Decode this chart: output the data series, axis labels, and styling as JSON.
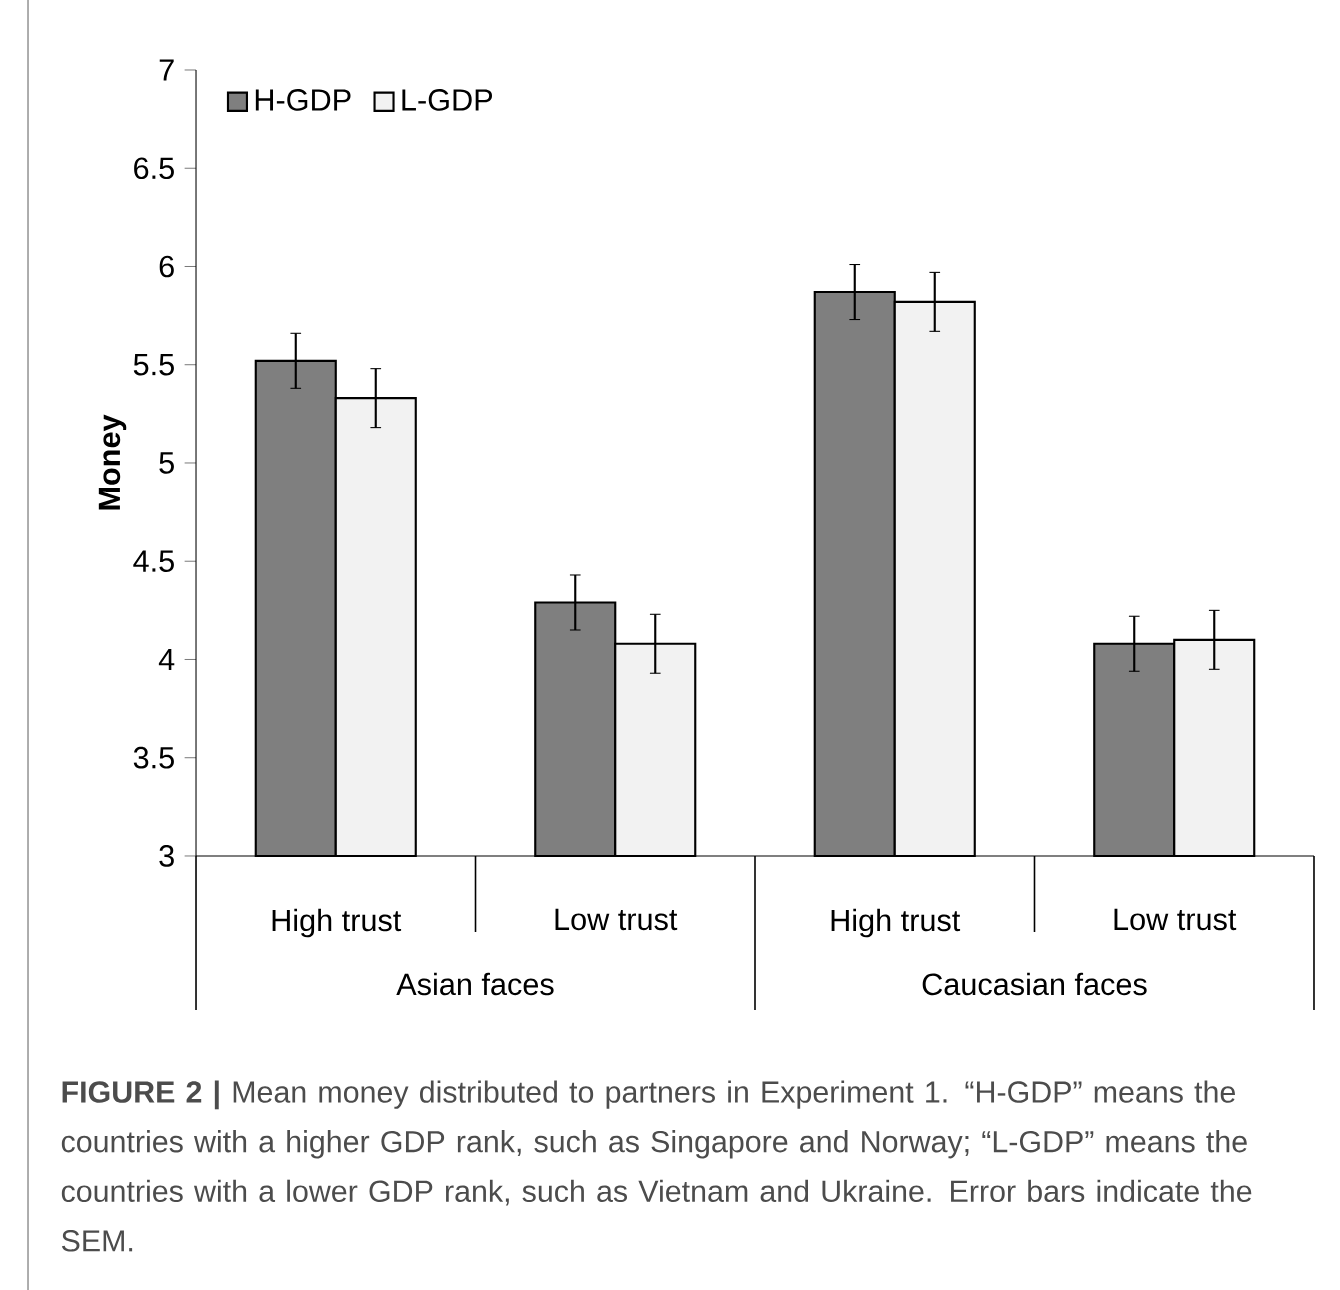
{
  "chart_data": {
    "type": "bar",
    "ylabel": "Money",
    "categories": [
      "High trust",
      "Low trust",
      "High trust",
      "Low trust"
    ],
    "series": [
      {
        "name": "H-GDP",
        "color": "#7f7f7f",
        "values": [
          5.52,
          4.29,
          5.87,
          4.08
        ],
        "errors": [
          0.14,
          0.14,
          0.14,
          0.14
        ]
      },
      {
        "name": "L-GDP",
        "color": "#f2f2f2",
        "values": [
          5.33,
          4.08,
          5.82,
          4.1
        ],
        "errors": [
          0.15,
          0.15,
          0.15,
          0.15
        ]
      }
    ],
    "ylim": [
      3,
      7
    ],
    "yticks": [
      3,
      3.5,
      4,
      4.5,
      5,
      5.5,
      6,
      6.5,
      7
    ],
    "legend": "top left",
    "grid": false,
    "annotations": [
      "Asian faces",
      "Caucasian faces",
      "**FIGURE 2 |** Mean money distributed to partners in Experiment 1. “H-GDP” means the countries with a higher GDP rank, such as Singapore and Norway; “L-GDP” means the countries with a lower GDP rank, such as Vietnam and Ukraine. Error bars indicate the SEM."
    ]
  }
}
